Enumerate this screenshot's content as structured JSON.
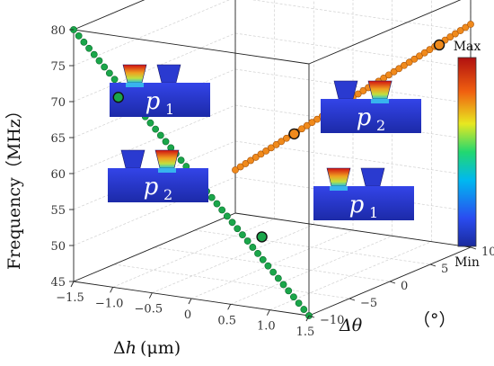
{
  "chart_data": {
    "type": "scatter",
    "projection": "3d",
    "z_axis": {
      "label": "Frequency（MHz）",
      "range": [
        45,
        80
      ],
      "ticks": [
        "45",
        "50",
        "55",
        "60",
        "65",
        "70",
        "75",
        "80"
      ]
    },
    "x_axis": {
      "label_prefix": "Δ",
      "label_var": "h",
      "label_unit": "(μm)",
      "range": [
        -1.5,
        1.5
      ],
      "ticks": [
        "−1.5",
        "−1.0",
        "−0.5",
        "0",
        "0.5",
        "1.0",
        "1.5"
      ]
    },
    "y_axis": {
      "label": "Δθ",
      "label_unit": "（°）",
      "range": [
        -10,
        10
      ],
      "ticks": [
        "−10",
        "−5",
        "0",
        "5",
        "10"
      ]
    },
    "series": [
      {
        "color": "#1aa64a",
        "x": [
          -1.5,
          1.5
        ],
        "y": [
          -10,
          -10
        ],
        "z": [
          80,
          45
        ]
      },
      {
        "color": "#f08a1c",
        "x": [
          -1.5,
          1.5
        ],
        "y": [
          10,
          10
        ],
        "z": [
          51,
          76
        ]
      }
    ],
    "highlighted_points": [
      {
        "label": "p1",
        "x": -0.93,
        "y": -10,
        "z": 71.5
      },
      {
        "label": "p1",
        "x": 0.9,
        "y": -10,
        "z": 55.0
      },
      {
        "label": "p2",
        "x": -0.75,
        "y": 10,
        "z": 57.2
      },
      {
        "label": "p2",
        "x": 1.1,
        "y": 10,
        "z": 72.5
      }
    ],
    "colorbar": {
      "max_label": "Max",
      "min_label": "Min"
    },
    "insets": [
      {
        "label": "p",
        "sub": "1"
      },
      {
        "label": "p",
        "sub": "2"
      },
      {
        "label": "p",
        "sub": "2"
      },
      {
        "label": "p",
        "sub": "1"
      }
    ]
  }
}
